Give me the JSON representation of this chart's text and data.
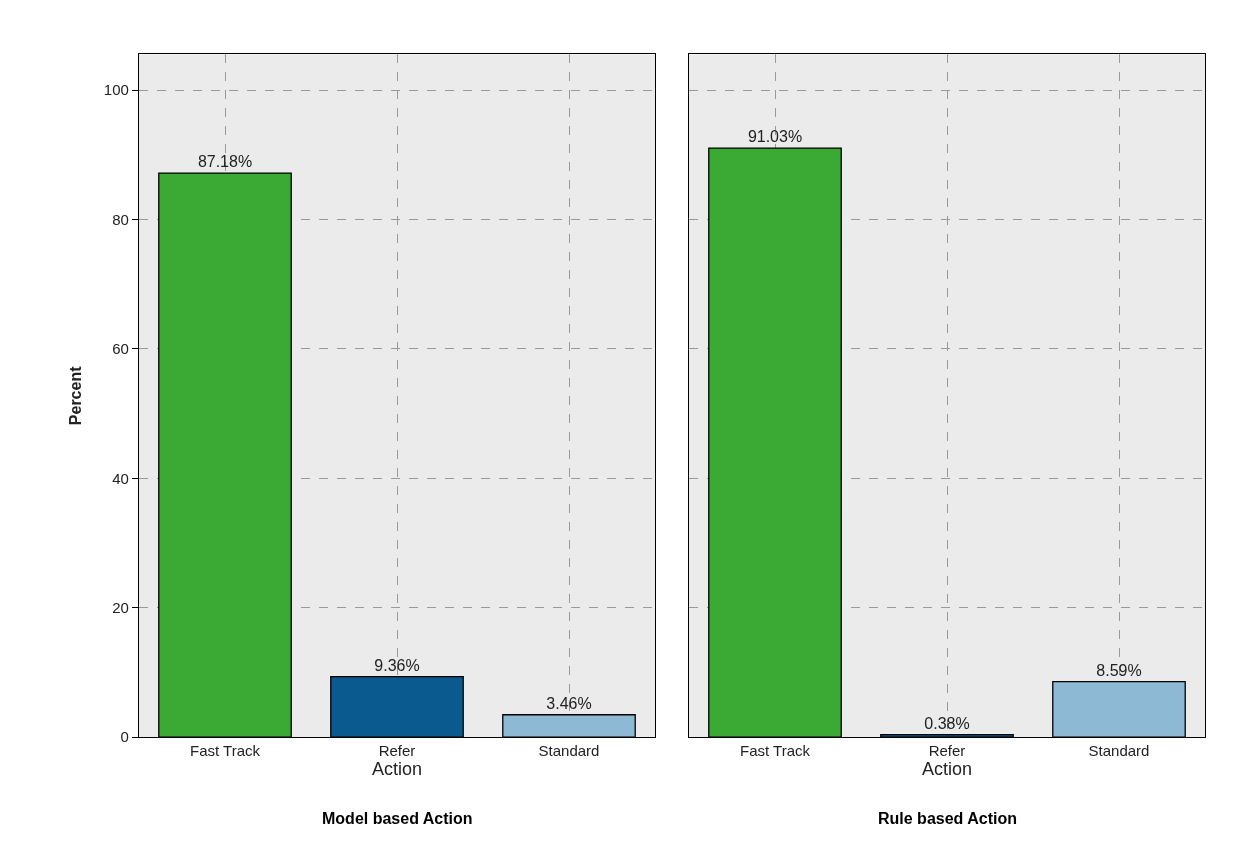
{
  "chart_data": [
    {
      "type": "bar",
      "title": "Model based Action",
      "xlabel": "Action",
      "ylabel": "Percent",
      "categories": [
        "Fast Track",
        "Refer",
        "Standard"
      ],
      "values": [
        87.18,
        9.36,
        3.46
      ],
      "colors": [
        "#3aaa35",
        "#0b5a8f",
        "#8db9d4"
      ],
      "value_labels": [
        "87.18%",
        "9.36%",
        "3.46%"
      ],
      "ylim": [
        0,
        105.5
      ],
      "yticks": [
        0,
        20,
        40,
        60,
        80,
        100
      ],
      "grid": true
    },
    {
      "type": "bar",
      "title": "Rule based Action",
      "xlabel": "Action",
      "categories": [
        "Fast Track",
        "Refer",
        "Standard"
      ],
      "values": [
        91.03,
        0.38,
        8.59
      ],
      "colors": [
        "#3aaa35",
        "#0b5a8f",
        "#8db9d4"
      ],
      "value_labels": [
        "91.03%",
        "0.38%",
        "8.59%"
      ],
      "ylim": [
        0,
        105.5
      ],
      "yticks": [
        0,
        20,
        40,
        60,
        80,
        100
      ],
      "grid": true,
      "tick_labels": "x"
    }
  ]
}
